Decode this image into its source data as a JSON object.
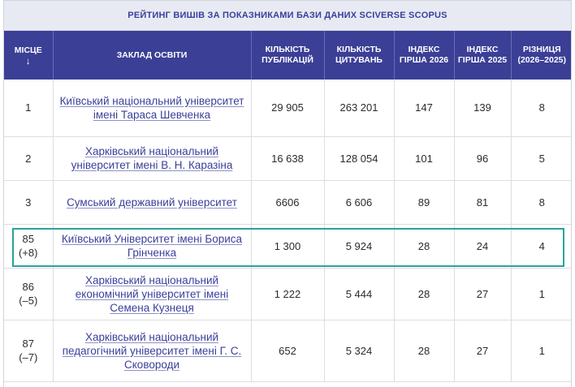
{
  "caption": "РЕЙТИНГ ВИШІВ ЗА ПОКАЗНИКАМИ БАЗИ ДАНИХ SCIVERSE SCOPUS",
  "header": {
    "place": "МІСЦЕ",
    "sort_arrow": "↓",
    "institution": "ЗАКЛАД ОСВІТИ",
    "publications": "КІЛЬКІСТЬ ПУБЛІКАЦІЙ",
    "citations": "КІЛЬКІСТЬ ЦИТУВАНЬ",
    "index2026": "ІНДЕКС ГІРША 2026",
    "index2025": "ІНДЕКС ГІРША 2025",
    "diff": "РІЗНИЦЯ (2026–2025)"
  },
  "rows": [
    {
      "place": "1",
      "delta": "",
      "name": "Київський національний університет імені Тараса Шевченка",
      "publications": "29 905",
      "citations": "263 201",
      "h2026": "147",
      "h2025": "139",
      "diff": "8"
    },
    {
      "place": "2",
      "delta": "",
      "name": "Харківський національний університет імені В. Н. Каразіна",
      "publications": "16 638",
      "citations": "128 054",
      "h2026": "101",
      "h2025": "96",
      "diff": "5"
    },
    {
      "place": "3",
      "delta": "",
      "name": "Сумський державний університет",
      "publications": "6606",
      "citations": "6 606",
      "h2026": "89",
      "h2025": "81",
      "diff": "8"
    },
    {
      "place": "85",
      "delta": "(+8)",
      "name": "Київський Університет імені Бориса Грінченка",
      "publications": "1 300",
      "citations": "5 924",
      "h2026": "28",
      "h2025": "24",
      "diff": "4"
    },
    {
      "place": "86",
      "delta": "(–5)",
      "name": "Харківський національний економічний університет імені Семена Кузнеця",
      "publications": "1 222",
      "citations": "5 444",
      "h2026": "28",
      "h2025": "27",
      "diff": "1"
    },
    {
      "place": "87",
      "delta": "(–7)",
      "name": "Харківський національний педагогічний університет імені Г. С. Сковороди",
      "publications": "652",
      "citations": "5 324",
      "h2026": "28",
      "h2025": "27",
      "diff": "1"
    }
  ],
  "colors": {
    "header_bg": "#3b3f96",
    "caption_bg": "#e8eaf3",
    "link": "#3a3f9a",
    "highlight": "#2aa39a"
  }
}
